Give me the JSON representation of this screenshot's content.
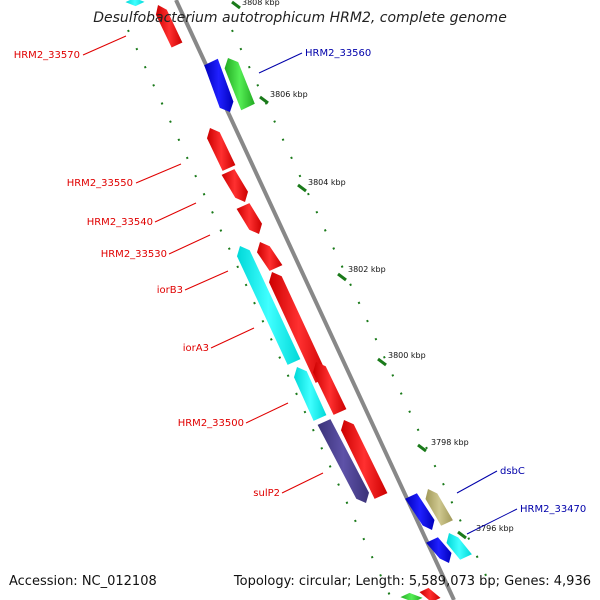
{
  "title": "Desulfobacterium autotrophicum HRM2, complete genome",
  "footer": {
    "accession": "Accession: NC_012108",
    "stats": "Topology: circular; Length: 5,589,073 bp; Genes: 4,936"
  },
  "colors": {
    "backbone": "#888888",
    "forward_label": "#e00000",
    "reverse_label": "#0000aa",
    "tick": "#1a7a1a",
    "red_gene": "#ff0000",
    "cyan_gene": "#00ffff",
    "blue_gene": "#0000ee",
    "green_gene": "#33cc33",
    "purple_gene": "#4b4090",
    "khaki_gene": "#b8b070"
  },
  "ticks": [
    {
      "label": "3808 kbp"
    },
    {
      "label": "3806 kbp"
    },
    {
      "label": "3804 kbp"
    },
    {
      "label": "3802 kbp"
    },
    {
      "label": "3800 kbp"
    },
    {
      "label": "3798 kbp"
    },
    {
      "label": "3796 kbp"
    }
  ],
  "gene_labels": [
    {
      "name": "HRM2_33570"
    },
    {
      "name": "HRM2_33560"
    },
    {
      "name": "HRM2_33550"
    },
    {
      "name": "HRM2_33540"
    },
    {
      "name": "HRM2_33530"
    },
    {
      "name": "iorB3"
    },
    {
      "name": "iorA3"
    },
    {
      "name": "HRM2_33500"
    },
    {
      "name": "sulP2"
    },
    {
      "name": "dsbC"
    },
    {
      "name": "HRM2_33470"
    }
  ]
}
